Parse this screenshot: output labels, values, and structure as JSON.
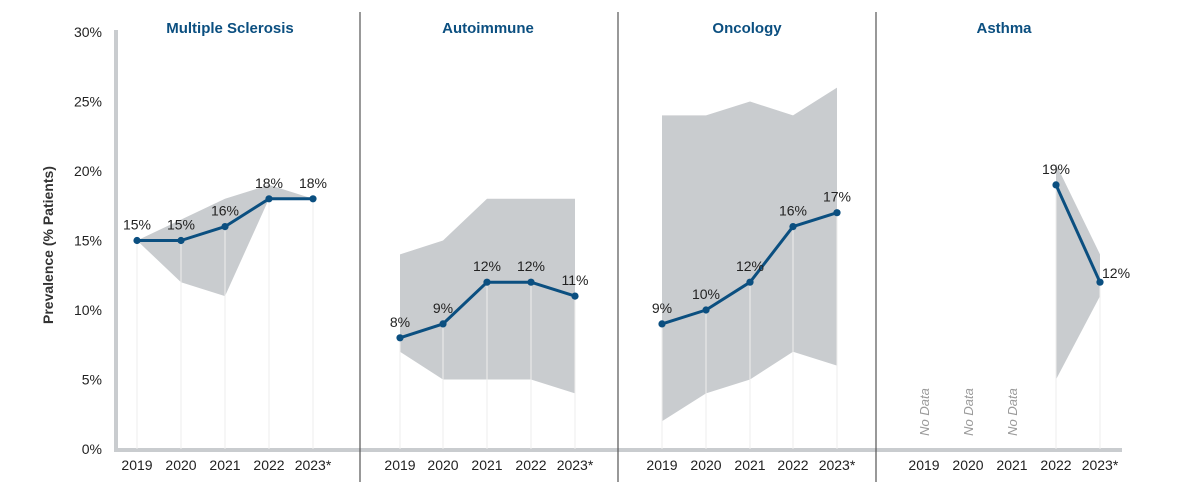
{
  "chart_data": {
    "type": "line",
    "ylabel": "Prevalence (% Patients)",
    "ylim": [
      0,
      30
    ],
    "yticks": [
      "0%",
      "5%",
      "10%",
      "15%",
      "20%",
      "25%",
      "30%"
    ],
    "categories": [
      "2019",
      "2020",
      "2021",
      "2022",
      "2023*"
    ],
    "no_data_label": "No Data",
    "colors": {
      "line": "#0b4f80",
      "band": "#c9cccf",
      "title": "#0b4f80",
      "axis": "#c9cccf",
      "divider": "#555555"
    },
    "panels": [
      {
        "title": "Multiple Sclerosis",
        "values": [
          15,
          15,
          16,
          18,
          18
        ],
        "labels": [
          "15%",
          "15%",
          "16%",
          "18%",
          "18%"
        ],
        "band_low": [
          15,
          12,
          11,
          18,
          18
        ],
        "band_high": [
          15,
          16.5,
          18,
          19,
          18
        ]
      },
      {
        "title": "Autoimmune",
        "values": [
          8,
          9,
          12,
          12,
          11
        ],
        "labels": [
          "8%",
          "9%",
          "12%",
          "12%",
          "11%"
        ],
        "band_low": [
          7,
          5,
          5,
          5,
          4
        ],
        "band_high": [
          14,
          15,
          18,
          18,
          18
        ]
      },
      {
        "title": "Oncology",
        "values": [
          9,
          10,
          12,
          16,
          17
        ],
        "labels": [
          "9%",
          "10%",
          "12%",
          "16%",
          "17%"
        ],
        "band_low": [
          2,
          4,
          5,
          7,
          6
        ],
        "band_high": [
          24,
          24,
          25,
          24,
          26
        ]
      },
      {
        "title": "Asthma",
        "values": [
          null,
          null,
          null,
          19,
          12
        ],
        "labels": [
          "",
          "",
          "",
          "19%",
          "12%"
        ],
        "band_low": [
          null,
          null,
          null,
          5,
          11
        ],
        "band_high": [
          null,
          null,
          null,
          20.5,
          14
        ]
      }
    ]
  }
}
